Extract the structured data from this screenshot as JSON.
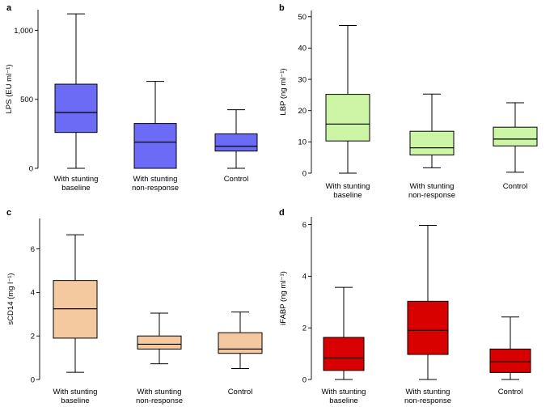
{
  "chart_data": [
    {
      "panel": "a",
      "type": "boxplot",
      "ylabel": "LPS (EU ml⁻¹)",
      "ylim": [
        0,
        1150
      ],
      "yticks": [
        0,
        500,
        1000
      ],
      "ytick_labels": [
        "0",
        "500",
        "1,000"
      ],
      "categories": [
        "With stunting baseline",
        "With stunting non-response",
        "Control"
      ],
      "category_lines": [
        [
          "With stunting",
          "baseline"
        ],
        [
          "With stunting",
          "non-response"
        ],
        [
          "Control"
        ]
      ],
      "fill": "#6b6bf5",
      "boxes": [
        {
          "min": 0,
          "q1": 260,
          "median": 405,
          "q3": 610,
          "max": 1120
        },
        {
          "min": 0,
          "q1": 0,
          "median": 190,
          "q3": 325,
          "max": 630
        },
        {
          "min": 0,
          "q1": 125,
          "median": 160,
          "q3": 250,
          "max": 425
        }
      ]
    },
    {
      "panel": "b",
      "type": "boxplot",
      "ylabel": "LBP (ng ml⁻¹)",
      "ylim": [
        0,
        52
      ],
      "yticks": [
        0,
        10,
        20,
        30,
        40,
        50
      ],
      "ytick_labels": [
        "0",
        "10",
        "20",
        "30",
        "40",
        "50"
      ],
      "categories": [
        "With stunting baseline",
        "With stunting non-response",
        "Control"
      ],
      "category_lines": [
        [
          "With stunting",
          "baseline"
        ],
        [
          "With stunting",
          "non-response"
        ],
        [
          "Control"
        ]
      ],
      "fill": "#ccf5a6",
      "boxes": [
        {
          "min": 0,
          "q1": 10.3,
          "median": 15.7,
          "q3": 25.2,
          "max": 47.2
        },
        {
          "min": 1.7,
          "q1": 5.8,
          "median": 8.1,
          "q3": 13.4,
          "max": 25.3
        },
        {
          "min": 0.3,
          "q1": 8.7,
          "median": 10.9,
          "q3": 14.7,
          "max": 22.5
        }
      ]
    },
    {
      "panel": "c",
      "type": "boxplot",
      "ylabel": "sCD14 (mg l⁻¹)",
      "ylim": [
        0,
        7.4
      ],
      "yticks": [
        0,
        2,
        4,
        6
      ],
      "ytick_labels": [
        "0",
        "2",
        "4",
        "6"
      ],
      "categories": [
        "With stunting baseline",
        "With stunting non-response",
        "Control"
      ],
      "category_lines": [
        [
          "With stunting",
          "baseline"
        ],
        [
          "With stunting",
          "non-response"
        ],
        [
          "Control"
        ]
      ],
      "fill": "#f5c9a0",
      "boxes": [
        {
          "min": 0.33,
          "q1": 1.9,
          "median": 3.25,
          "q3": 4.55,
          "max": 6.65
        },
        {
          "min": 0.72,
          "q1": 1.4,
          "median": 1.62,
          "q3": 2.0,
          "max": 3.05
        },
        {
          "min": 0.5,
          "q1": 1.2,
          "median": 1.4,
          "q3": 2.15,
          "max": 3.1
        }
      ]
    },
    {
      "panel": "d",
      "type": "boxplot",
      "ylabel": "iFABP (ng ml⁻¹)",
      "ylim": [
        0,
        6.3
      ],
      "yticks": [
        0,
        2,
        4,
        6
      ],
      "ytick_labels": [
        "0",
        "2",
        "4",
        "6"
      ],
      "categories": [
        "With stunting baseline",
        "With stunting non-response",
        "Control"
      ],
      "category_lines": [
        [
          "With stunting",
          "baseline"
        ],
        [
          "With stunting",
          "non-response"
        ],
        [
          "Control"
        ]
      ],
      "fill": "#d90000",
      "boxes": [
        {
          "min": 0,
          "q1": 0.35,
          "median": 0.83,
          "q3": 1.63,
          "max": 3.57
        },
        {
          "min": 0,
          "q1": 0.97,
          "median": 1.9,
          "q3": 3.03,
          "max": 5.97
        },
        {
          "min": 0,
          "q1": 0.27,
          "median": 0.68,
          "q3": 1.18,
          "max": 2.42
        }
      ]
    }
  ]
}
